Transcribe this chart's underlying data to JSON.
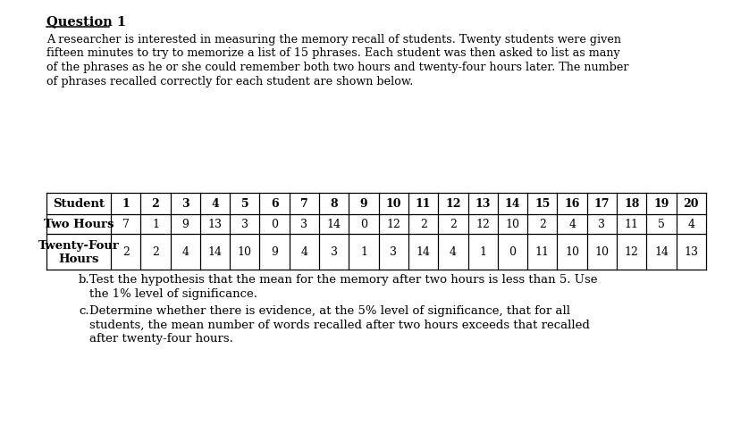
{
  "title": "Question 1",
  "paragraph_lines": [
    "A researcher is interested in measuring the memory recall of students. Twenty students were given",
    "fifteen minutes to try to memorize a list of 15 phrases. Each student was then asked to list as many",
    "of the phrases as he or she could remember both two hours and twenty-four hours later. The number",
    "of phrases recalled correctly for each student are shown below."
  ],
  "students": [
    1,
    2,
    3,
    4,
    5,
    6,
    7,
    8,
    9,
    10,
    11,
    12,
    13,
    14,
    15,
    16,
    17,
    18,
    19,
    20
  ],
  "two_hours": [
    7,
    1,
    9,
    13,
    3,
    0,
    3,
    14,
    0,
    12,
    2,
    2,
    12,
    10,
    2,
    4,
    3,
    11,
    5,
    4
  ],
  "twenty_four_hours": [
    2,
    2,
    4,
    14,
    10,
    9,
    4,
    3,
    1,
    3,
    14,
    4,
    1,
    0,
    11,
    10,
    10,
    12,
    14,
    13
  ],
  "note_b_line1": "Test the hypothesis that the mean for the memory after two hours is less than 5. Use",
  "note_b_line2": "the 1% level of significance.",
  "note_c_line1": "Determine whether there is evidence, at the 5% level of significance, that for all",
  "note_c_line2": "students, the mean number of words recalled after two hours exceeds that recalled",
  "note_c_line3": "after twenty-four hours.",
  "bg_color": "#ffffff",
  "text_color": "#000000"
}
